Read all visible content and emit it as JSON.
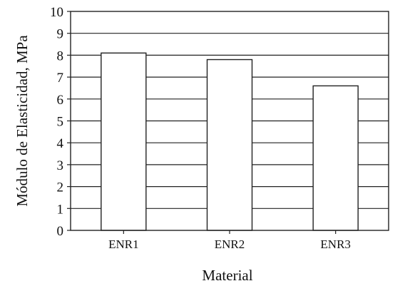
{
  "chart_data": {
    "type": "bar",
    "categories": [
      "ENR1",
      "ENR2",
      "ENR3"
    ],
    "values": [
      8.1,
      7.8,
      6.6
    ],
    "title": "",
    "xlabel": "Material",
    "ylabel": "Módulo de Elasticidad, MPa",
    "ylim": [
      0,
      10
    ],
    "yticks": [
      "0",
      "1",
      "2",
      "3",
      "4",
      "5",
      "6",
      "7",
      "8",
      "9",
      "10"
    ],
    "grid": true,
    "bar_color": "#ffffff",
    "line_color": "#222222"
  }
}
